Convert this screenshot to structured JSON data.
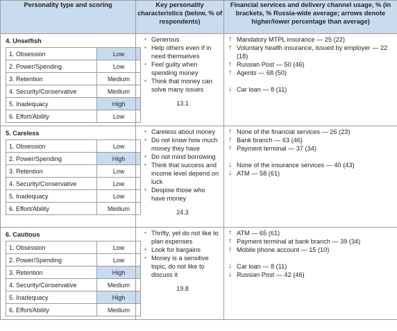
{
  "header": {
    "col1": "Personality type and scoring",
    "col2": "Key personality characteristics (below, % of respondents)",
    "col3": "Financial services and delivery channel usage, % (in brackets, % Russia-wide average; arrows denote higher/lower percentage than average)"
  },
  "types": [
    {
      "title": "4. Unselfish",
      "scores": [
        {
          "label": "1. Obsession",
          "level": "Low",
          "highlight": true
        },
        {
          "label": "2. Power/Spending",
          "level": "Low",
          "highlight": false
        },
        {
          "label": "3. Retention",
          "level": "Medium",
          "highlight": false
        },
        {
          "label": "4. Security/Conservative",
          "level": "Medium",
          "highlight": false
        },
        {
          "label": "5. Inadequacy",
          "level": "High",
          "highlight": true
        },
        {
          "label": "6. Effort/Ability",
          "level": "Low",
          "highlight": false
        }
      ],
      "characteristics": [
        "Generous",
        "Help others even if in need themselves",
        "Feel guilty when spending money",
        "Think that money can solve many issues"
      ],
      "percent": "13.1",
      "services": [
        {
          "arrow": "↑",
          "text": "Mandatory MTPL insurance — 25 (22)"
        },
        {
          "arrow": "↑",
          "text": "Voluntary health insurance, issued by employer — 22 (18)"
        },
        {
          "arrow": "↑",
          "text": "Russian Post — 50 (46)"
        },
        {
          "arrow": "↑",
          "text": "Agents — 68 (50)"
        },
        {
          "arrow": "",
          "text": ""
        },
        {
          "arrow": "↓",
          "text": "Car loan — 8 (11)"
        }
      ]
    },
    {
      "title": "5. Careless",
      "scores": [
        {
          "label": "1. Obsession",
          "level": "Low",
          "highlight": false
        },
        {
          "label": "2. Power/Spending",
          "level": "High",
          "highlight": true
        },
        {
          "label": "3. Retention",
          "level": "Low",
          "highlight": false
        },
        {
          "label": "4. Security/Conservative",
          "level": "Low",
          "highlight": false
        },
        {
          "label": "5. Inadequacy",
          "level": "Low",
          "highlight": false
        },
        {
          "label": "6. Effort/Ability",
          "level": "Medium",
          "highlight": false
        }
      ],
      "characteristics": [
        "Careless about money",
        "Do not know how much money they have",
        "Do not mind borrowing",
        "Think that success and income level depend on luck",
        "Despise those who have money"
      ],
      "percent": "24.3",
      "services": [
        {
          "arrow": "↑",
          "text": "None of the financial services — 26 (23)"
        },
        {
          "arrow": "↑",
          "text": "Bank branch — 63 (46)"
        },
        {
          "arrow": "↑",
          "text": "Payment terminal — 37 (34)"
        },
        {
          "arrow": "",
          "text": ""
        },
        {
          "arrow": "↓",
          "text": "None of the insurance services — 40 (43)"
        },
        {
          "arrow": "↓",
          "text": "ATM — 58 (61)"
        }
      ]
    },
    {
      "title": "6. Cautious",
      "scores": [
        {
          "label": "1. Obsession",
          "level": "Low",
          "highlight": false
        },
        {
          "label": "2. Power/Spending",
          "level": "Low",
          "highlight": false
        },
        {
          "label": "3. Retention",
          "level": "High",
          "highlight": true
        },
        {
          "label": "4. Security/Conservative",
          "level": "Medium",
          "highlight": false
        },
        {
          "label": "5. Inadequacy",
          "level": "High",
          "highlight": true
        },
        {
          "label": "6. Effort/Ability",
          "level": "Medium",
          "highlight": false
        }
      ],
      "characteristics": [
        "Thrifty, yet do not like to plan expenses",
        "Look for bargains",
        "Money is a sensitive topic, do not like to discuss it"
      ],
      "percent": "19.8",
      "services": [
        {
          "arrow": "↑",
          "text": "ATM — 65 (61)"
        },
        {
          "arrow": "↑",
          "text": "Payment terminal at bank branch — 39 (34)"
        },
        {
          "arrow": "↑",
          "text": "Mobile phone account — 15 (10)"
        },
        {
          "arrow": "",
          "text": ""
        },
        {
          "arrow": "↓",
          "text": "Car loan — 8 (11)"
        },
        {
          "arrow": "↓",
          "text": "Russian Post — 42 (46)"
        }
      ]
    }
  ]
}
